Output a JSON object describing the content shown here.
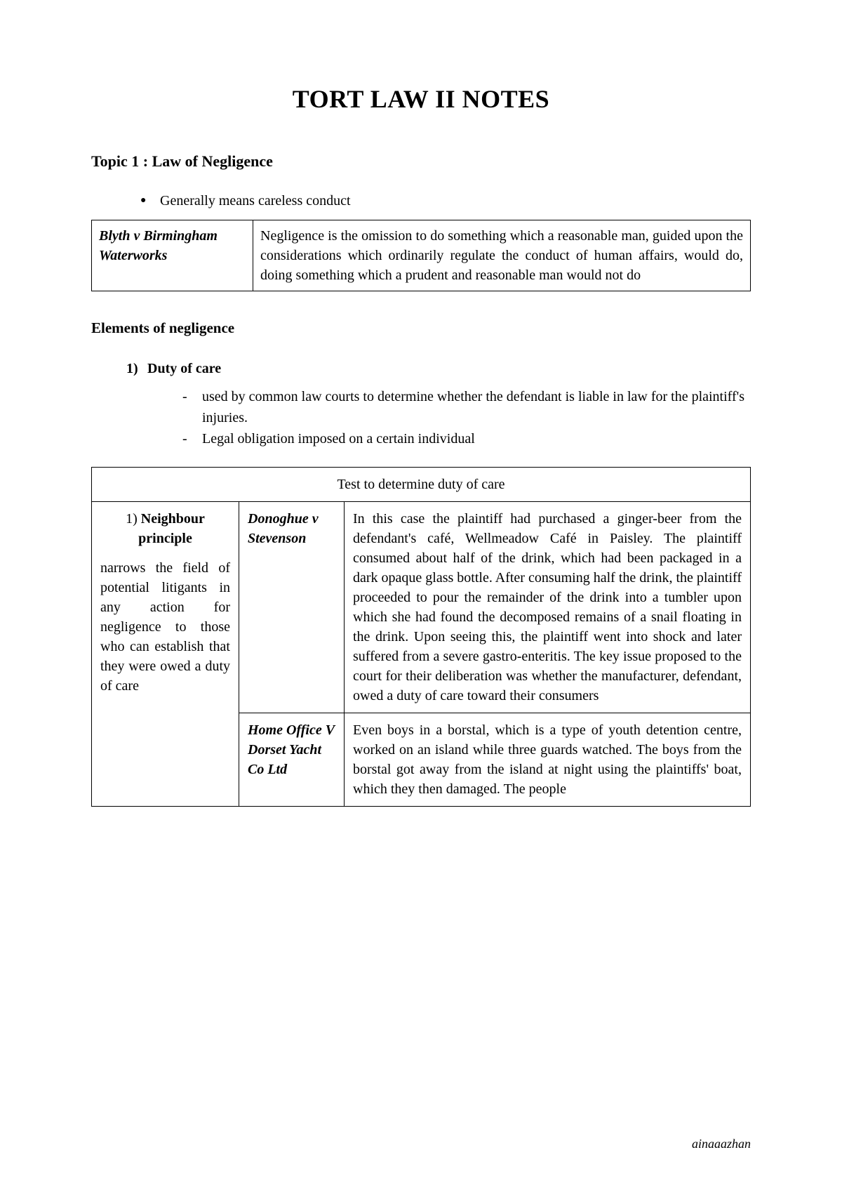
{
  "title": "TORT LAW II NOTES",
  "topic_heading": "Topic 1 : Law of Negligence",
  "intro_bullet": "Generally means careless conduct",
  "case1": {
    "name": "Blyth v Birmingham Waterworks",
    "desc": "Negligence is the omission to do something which a reasonable man, guided upon the considerations which ordinarily regulate the conduct of human affairs, would do, doing something which a prudent and reasonable man would not do"
  },
  "elements_heading": "Elements of negligence",
  "element1": {
    "num": "1)",
    "title": "Duty of care",
    "point1": "used by common law courts to determine whether the defendant is liable in law for the plaintiff's injuries.",
    "point2": "Legal obligation imposed on a certain individual"
  },
  "test_table_header": "Test to determine duty of care",
  "principle1": {
    "num": "1)",
    "name": "Neighbour principle",
    "desc": "narrows the field of potential litigants in any action for negligence to those who can establish that they were owed a duty of care"
  },
  "test_case1": {
    "name": "Donoghue v Stevenson",
    "desc": "In this case the plaintiff had purchased a ginger-beer from the defendant's café, Wellmeadow Café in Paisley. The plaintiff consumed about half of the drink, which had been packaged in a dark opaque glass bottle. After consuming half the drink, the plaintiff proceeded to pour the remainder of the drink into a tumbler upon which she had found the decomposed remains of a snail floating in the drink. Upon seeing this, the plaintiff went into shock and later suffered from a severe gastro-enteritis. The key issue proposed to the court for their deliberation was whether the manufacturer, defendant, owed a duty of care toward their consumers"
  },
  "test_case2": {
    "name": "Home Office V Dorset Yacht Co Ltd",
    "desc": "Even boys in a borstal, which is a type of youth detention centre, worked on an island while three guards watched. The boys from the borstal got away from the island at night using the plaintiffs' boat, which they then damaged. The people"
  },
  "footer_author": "ainaaazhan",
  "colors": {
    "text": "#000000",
    "background": "#ffffff",
    "border": "#000000"
  },
  "typography": {
    "title_fontsize": 36,
    "heading_fontsize": 22,
    "body_fontsize": 20,
    "footer_fontsize": 18,
    "font_family": "Georgia, serif"
  }
}
